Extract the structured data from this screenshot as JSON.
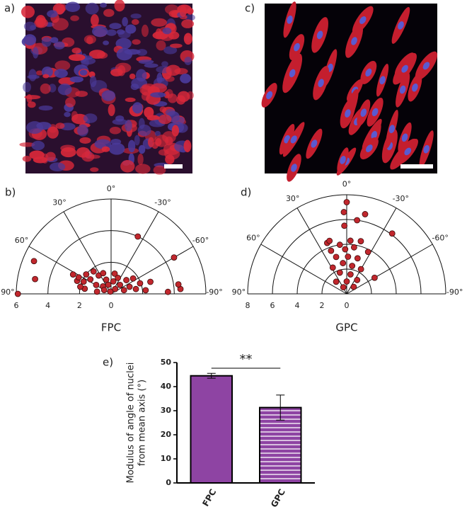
{
  "images": [
    {
      "label": "a)"
    },
    {
      "label": "c)"
    }
  ],
  "chart_data": [
    {
      "type": "polar",
      "panel_label": "b)",
      "xlabel": "FPC",
      "rlim": [
        0,
        6
      ],
      "rticks": [
        6,
        4,
        2,
        0
      ],
      "angle_ticks": [
        {
          "value": 90,
          "label": "90°"
        },
        {
          "value": 60,
          "label": "60°"
        },
        {
          "value": 30,
          "label": "30°"
        },
        {
          "value": 0,
          "label": "0°"
        },
        {
          "value": -30,
          "label": "-30°"
        },
        {
          "value": -60,
          "label": "-60°"
        },
        {
          "value": -90,
          "label": "-90°"
        }
      ],
      "series": [
        {
          "color": "#c1272d",
          "r": [
            5.9,
            5.3,
            4.9,
            4.0,
            4.6,
            4.4,
            4.3,
            3.6,
            2.7,
            2.3,
            2.3,
            1.9,
            2.0,
            1.6,
            1.8,
            1.1,
            1.4,
            0.7,
            0.95,
            0.5,
            0.6,
            0.15,
            0.8,
            0.4,
            1.1,
            0.8,
            0.85,
            1.3,
            1.25,
            1.7,
            1.6,
            1.95,
            2.2,
            2.6,
            1.7,
            0.9,
            2.0,
            1.4,
            1.3
          ],
          "theta": [
            90,
            67,
            79,
            -25,
            -60,
            -86,
            -82,
            -88,
            63,
            69,
            63,
            66,
            52,
            55,
            38,
            59,
            34,
            47,
            19,
            61,
            17,
            18,
            -10,
            -40,
            -23,
            -45,
            -74,
            -48,
            -69,
            -55,
            -79,
            -70,
            -84,
            -73,
            79,
            81,
            77,
            21,
            -10
          ]
        }
      ]
    },
    {
      "type": "polar",
      "panel_label": "d)",
      "xlabel": "GPC",
      "rlim": [
        0,
        8
      ],
      "rticks": [
        8,
        6,
        4,
        2,
        0
      ],
      "angle_ticks": [
        {
          "value": 90,
          "label": "90°"
        },
        {
          "value": 60,
          "label": "60°"
        },
        {
          "value": 30,
          "label": "30°"
        },
        {
          "value": 0,
          "label": "0°"
        },
        {
          "value": -30,
          "label": "-30°"
        },
        {
          "value": -60,
          "label": "-60°"
        },
        {
          "value": -90,
          "label": "-90°"
        }
      ],
      "series": [
        {
          "color": "#c1272d",
          "r": [
            7.4,
            6.6,
            6.6,
            6.0,
            5.5,
            6.1,
            4.4,
            3.7,
            4.0,
            4.3,
            4.4,
            3.8,
            3.6,
            3.8,
            3.1,
            3.0,
            3.0,
            2.5,
            2.3,
            2.4,
            2.3,
            1.8,
            1.6,
            1.4,
            1.3,
            1.0,
            0.6,
            0.8,
            2.6,
            4.5
          ],
          "theta": [
            0,
            2,
            -13,
            -8,
            2,
            -37,
            21,
            20,
            8,
            -4,
            -15,
            -9,
            2,
            -27,
            16,
            -2,
            -17,
            7,
            -11,
            28,
            -30,
            18,
            -11,
            -37,
            41,
            0,
            27,
            -45,
            -60,
            18
          ]
        }
      ]
    },
    {
      "type": "bar",
      "panel_label": "e)",
      "ylabel": [
        "Modulus of angle of nuclei",
        "from mean axis (°)"
      ],
      "categories": [
        "FPC",
        "GPC"
      ],
      "values": [
        44.5,
        31.3
      ],
      "errors": [
        1.0,
        5.2
      ],
      "color": "#8e44a3",
      "hatch": [
        "none",
        "horizontal"
      ],
      "ylim": [
        0,
        50
      ],
      "yticks": [
        0,
        10,
        20,
        30,
        40,
        50
      ],
      "annotation": "**"
    }
  ]
}
